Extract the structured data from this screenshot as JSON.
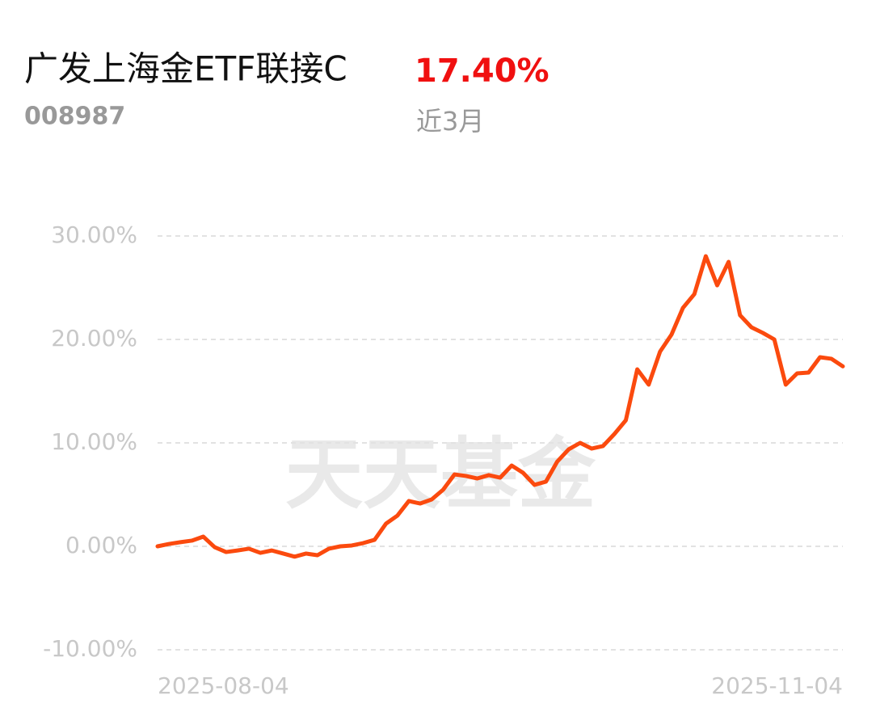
{
  "chart_data": {
    "type": "line",
    "title": "广发上海金ETF联接C",
    "code": "008987",
    "return": "17.40%",
    "period": "近3月",
    "watermark": "天天基金",
    "categories": [
      "2025-08-04",
      null,
      null,
      null,
      null,
      null,
      null,
      null,
      null,
      null,
      null,
      null,
      null,
      null,
      null,
      null,
      null,
      null,
      null,
      null,
      null,
      null,
      null,
      null,
      null,
      null,
      null,
      null,
      null,
      null,
      null,
      null,
      null,
      null,
      null,
      null,
      null,
      null,
      null,
      null,
      null,
      null,
      null,
      null,
      null,
      null,
      null,
      null,
      null,
      null,
      null,
      null,
      null,
      null,
      null,
      null,
      null,
      null,
      null,
      null,
      "2025-11-04"
    ],
    "series": [
      {
        "color": "#fb4a0e",
        "values": [
          0,
          0.23,
          0.4,
          0.55,
          0.94,
          -0.08,
          -0.55,
          -0.4,
          -0.23,
          -0.63,
          -0.4,
          -0.7,
          -1.0,
          -0.7,
          -0.86,
          -0.23,
          0,
          0.08,
          0.31,
          0.63,
          2.19,
          2.97,
          4.38,
          4.14,
          4.53,
          5.47,
          6.95,
          6.8,
          6.56,
          6.88,
          6.64,
          7.81,
          7.11,
          5.94,
          6.25,
          8.2,
          9.38,
          10.0,
          9.45,
          9.69,
          10.86,
          12.19,
          17.11,
          15.63,
          18.83,
          20.47,
          23.05,
          24.38,
          28.05,
          25.23,
          27.5,
          22.34,
          21.17,
          20.63,
          20.0,
          15.63,
          16.72,
          16.8,
          18.28,
          18.13,
          17.4
        ]
      }
    ],
    "ylim": [
      -10,
      30
    ],
    "yticks": [
      {
        "value": -10,
        "label": "-10.00%"
      },
      {
        "value": 0,
        "label": "0.00%"
      },
      {
        "value": 10,
        "label": "10.00%"
      },
      {
        "value": 20,
        "label": "20.00%"
      },
      {
        "value": 30,
        "label": "30.00%"
      }
    ],
    "grid": true
  }
}
